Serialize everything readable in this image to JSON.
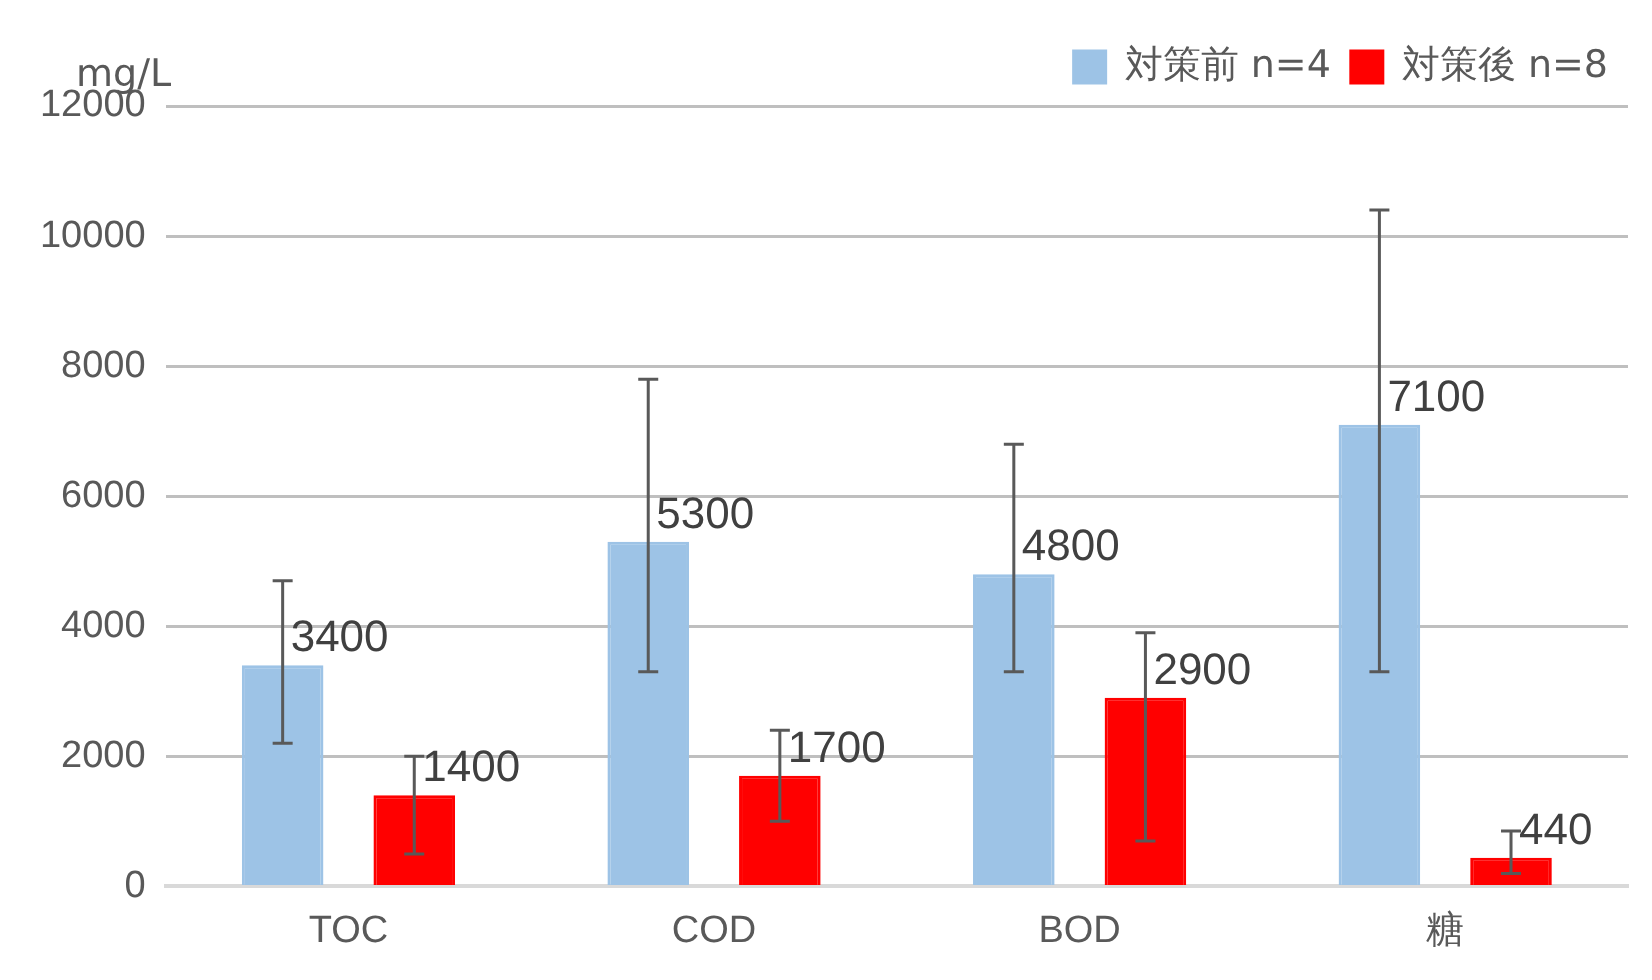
{
  "chart_data": {
    "type": "bar",
    "ylabel": "mg/L",
    "categories": [
      "TOC",
      "COD",
      "BOD",
      "糖"
    ],
    "series": [
      {
        "name": "対策前 n=4",
        "color": "#9dc3e6",
        "values": [
          3400,
          5300,
          4800,
          7100
        ],
        "errors": [
          [
            2200,
            4700
          ],
          [
            3300,
            7800
          ],
          [
            3300,
            6800
          ],
          [
            3300,
            10400
          ]
        ]
      },
      {
        "name": "対策後 n=8",
        "color": "#ff0000",
        "values": [
          1400,
          1700,
          2900,
          440
        ],
        "errors": [
          [
            500,
            2000
          ],
          [
            1000,
            2400
          ],
          [
            700,
            3900
          ],
          [
            200,
            850
          ]
        ]
      }
    ],
    "ylim": [
      0,
      12000
    ],
    "yticks": [
      0,
      2000,
      4000,
      6000,
      8000,
      10000,
      12000
    ],
    "grid": "y",
    "legend": "top right",
    "data_labels": true
  }
}
